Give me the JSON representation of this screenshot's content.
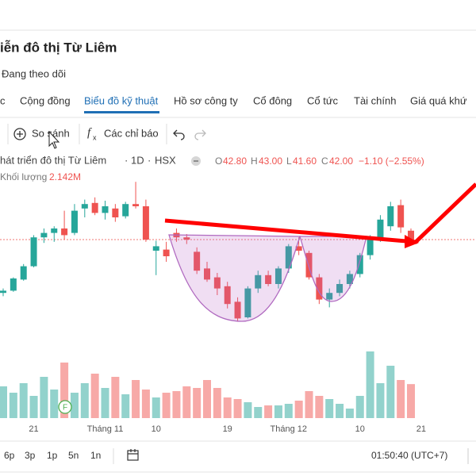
{
  "header": {
    "title": "iễn đô thị Từ Liêm",
    "follow": "Đang theo dõi"
  },
  "tabs": [
    "c",
    "Cộng đồng",
    "Biểu đồ kỹ thuật",
    "Hồ sơ công ty",
    "Cổ đông",
    "Cổ tức",
    "Tài chính",
    "Giá quá khứ"
  ],
  "toolbar": {
    "compare": "So sánh",
    "indicators": "Các chỉ báo"
  },
  "legend": {
    "symbol_name": "hát triển đô thị Từ Liêm",
    "separator": "·",
    "interval": "1D",
    "exchange": "HSX",
    "ohlc_keys": [
      "O",
      "H",
      "L",
      "C"
    ],
    "open": "42.80",
    "high": "43.00",
    "low": "41.60",
    "close": "42.00",
    "change": "−1.10 (−2.55%)",
    "volume_title": "Khối lượng",
    "volume": "2.142M"
  },
  "chart_data": {
    "type": "candlestick",
    "categories": [
      null,
      null,
      null,
      "21",
      null,
      null,
      null,
      null,
      null,
      null,
      "Tháng 11",
      null,
      null,
      null,
      null,
      "10",
      null,
      null,
      null,
      null,
      null,
      null,
      "19",
      null,
      null,
      null,
      null,
      null,
      "Tháng 12",
      null,
      null,
      null,
      null,
      null,
      null,
      "10",
      null,
      null,
      null,
      null,
      null,
      "21"
    ],
    "open": [
      37.2,
      37.4,
      38.4,
      39.6,
      42.2,
      42.6,
      43.0,
      42.6,
      44.8,
      45.3,
      44.4,
      44.8,
      44.1,
      45.2,
      45.0,
      41.0,
      41.1,
      42.6,
      42.2,
      40.9,
      39.4,
      38.6,
      37.8,
      36.4,
      35.0,
      37.6,
      38.8,
      38.0,
      39.4,
      41.4,
      40.8,
      38.6,
      36.6,
      37.2,
      38.0,
      38.9,
      40.6,
      42.2,
      43.2,
      45.1,
      42.8,
      null
    ],
    "high": [
      37.6,
      38.6,
      39.8,
      42.4,
      43.0,
      43.2,
      44.6,
      45.2,
      45.6,
      45.8,
      45.5,
      45.2,
      45.4,
      47.2,
      45.6,
      41.9,
      41.8,
      43.0,
      42.5,
      41.3,
      40.0,
      39.0,
      38.2,
      36.8,
      37.8,
      39.2,
      39.2,
      39.6,
      41.6,
      42.2,
      41.0,
      38.9,
      37.6,
      38.4,
      39.2,
      40.8,
      42.4,
      44.2,
      45.4,
      45.6,
      43.0,
      null
    ],
    "low": [
      36.9,
      37.3,
      38.3,
      39.5,
      41.7,
      41.8,
      42.0,
      42.4,
      44.0,
      44.2,
      43.8,
      43.6,
      43.9,
      44.8,
      41.8,
      38.8,
      40.0,
      41.8,
      41.6,
      38.9,
      38.2,
      37.0,
      35.8,
      34.6,
      34.9,
      37.2,
      37.8,
      37.6,
      39.0,
      40.6,
      38.4,
      36.2,
      35.9,
      36.9,
      37.6,
      38.6,
      40.2,
      41.8,
      42.8,
      42.6,
      41.6,
      null
    ],
    "close": [
      37.4,
      38.5,
      39.6,
      42.2,
      42.6,
      43.0,
      42.4,
      44.6,
      45.2,
      44.4,
      45.0,
      44.0,
      45.2,
      45.0,
      42.0,
      41.4,
      40.5,
      42.2,
      42.0,
      39.2,
      38.4,
      37.6,
      36.2,
      34.9,
      37.6,
      38.8,
      38.0,
      39.4,
      41.4,
      41.0,
      38.6,
      36.6,
      37.2,
      38.0,
      38.9,
      40.6,
      42.2,
      43.8,
      45.0,
      43.1,
      42.0,
      null
    ],
    "volume": [
      2.0,
      1.6,
      2.2,
      1.4,
      2.6,
      1.8,
      3.5,
      1.6,
      2.2,
      2.8,
      1.9,
      2.6,
      1.5,
      2.4,
      1.8,
      1.3,
      1.6,
      1.7,
      2.0,
      1.9,
      2.4,
      1.9,
      1.3,
      1.2,
      1.0,
      0.7,
      0.8,
      0.8,
      0.9,
      1.1,
      1.7,
      1.4,
      1.2,
      0.9,
      0.6,
      1.4,
      4.2,
      2.2,
      3.3,
      2.4,
      2.142,
      null
    ],
    "ylim": [
      33.5,
      48.5
    ],
    "y2lim": [
      0,
      5
    ],
    "up_color": "#26a69a",
    "down_color": "#ef5350",
    "last_price_line": true,
    "event_marker": "F"
  },
  "bottom_bar": {
    "ranges": [
      "6p",
      "3p",
      "1p",
      "5n",
      "1n"
    ],
    "time": "01:50:40 (UTC+7)"
  }
}
